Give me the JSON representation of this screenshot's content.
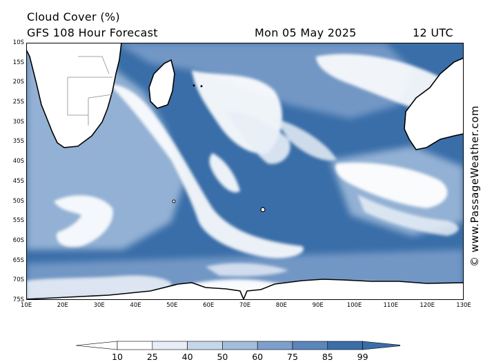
{
  "header": {
    "title": "Cloud Cover (%)",
    "subtitle": "GFS 108 Hour Forecast",
    "date": "Mon 05 May 2025",
    "time": "12 UTC"
  },
  "map": {
    "lat_labels": [
      "10S",
      "15S",
      "20S",
      "25S",
      "30S",
      "35S",
      "40S",
      "45S",
      "50S",
      "55S",
      "60S",
      "65S",
      "70S",
      "75S"
    ],
    "lon_labels": [
      "10E",
      "20E",
      "30E",
      "40E",
      "50E",
      "60E",
      "70E",
      "80E",
      "90E",
      "100E",
      "110E",
      "120E",
      "130E"
    ],
    "ocean_color": "#3a6ea8",
    "land_color": "#ffffff",
    "coastline_color": "#000000"
  },
  "watermark": "© www.PassageWeather.com",
  "colorbar": {
    "labels": [
      "10",
      "25",
      "40",
      "50",
      "60",
      "75",
      "85",
      "99"
    ],
    "colors": [
      "#ffffff",
      "#ffffff",
      "#e8eef7",
      "#c7d7ea",
      "#a3bddc",
      "#7d9fcb",
      "#5a86bb",
      "#3a6ea8",
      "#3a6ea8"
    ]
  }
}
